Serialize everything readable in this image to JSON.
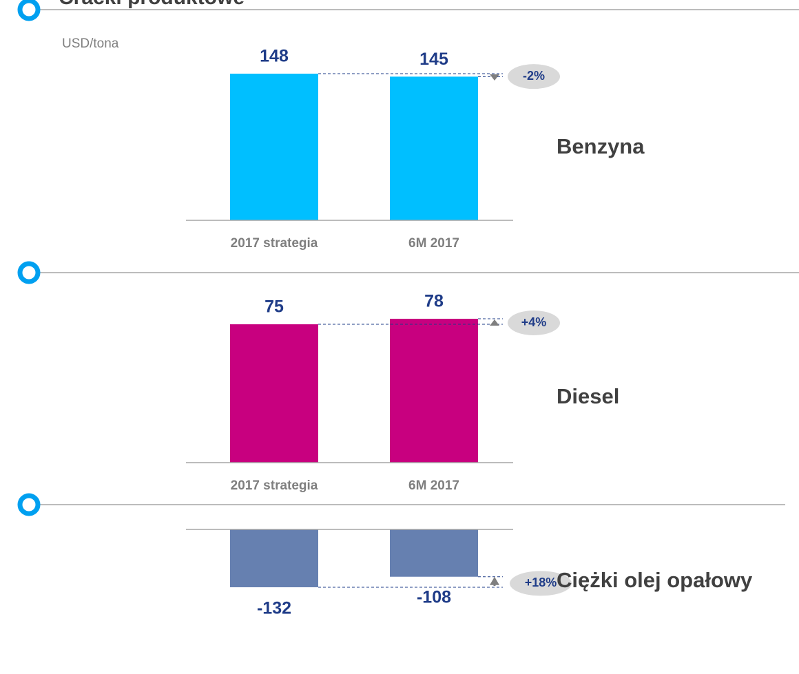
{
  "title": "Cracki produktowe",
  "unit": "USD/tona",
  "chart_data": [
    {
      "type": "bar",
      "label": "Benzyna",
      "categories": [
        "2017 strategia",
        "6M 2017"
      ],
      "values": [
        148,
        145
      ],
      "color": "#00bfff",
      "change": "-2%"
    },
    {
      "type": "bar",
      "label": "Diesel",
      "categories": [
        "2017 strategia",
        "6M 2017"
      ],
      "values": [
        75,
        78
      ],
      "color": "#c8007f",
      "change": "+4%"
    },
    {
      "type": "bar",
      "label": "Ciężki olej opałowy",
      "categories": [
        null,
        null
      ],
      "values": [
        -132,
        -108
      ],
      "color": "#6680b0",
      "change": "+18%"
    }
  ]
}
